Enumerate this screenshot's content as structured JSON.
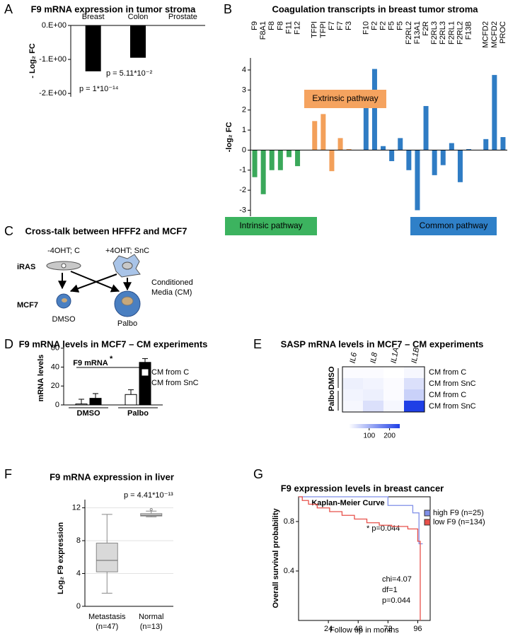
{
  "chart_data": [
    {
      "panel": "A",
      "type": "bar",
      "title": "F9 mRNA expression in tumor stroma",
      "y_label": "- Log₂ FC",
      "categories": [
        "Breast",
        "Colon",
        "Prostate"
      ],
      "values": [
        -1.35,
        -0.95,
        0
      ],
      "color": "#000000",
      "ylim": [
        -2.1,
        0
      ],
      "yticks": [
        {
          "value": 0,
          "label": "0.E+00"
        },
        {
          "value": -1,
          "label": "-1.E+00"
        },
        {
          "value": -2,
          "label": "-2.E+00"
        }
      ],
      "annotations": [
        "p = 1*10⁻¹⁴",
        "p = 5.11*10⁻²"
      ]
    },
    {
      "panel": "B",
      "type": "bar",
      "title": "Coagulation transcripts in breast tumor stroma",
      "y_label": "-log₂ FC",
      "categories": [
        "F9",
        "F8A1",
        "F8",
        "F8",
        "F11",
        "F12",
        null,
        "TFPI",
        "TFPI",
        "F7",
        "F7",
        "F3",
        null,
        "F10",
        "F2",
        "F2",
        "F5",
        "F5",
        "F2RL2",
        "F13A1",
        "F2R",
        "F2RL3",
        "F2RL3",
        "F2RL1",
        "F2RL2",
        "F13B",
        null,
        "MCFD2",
        "MCFD2",
        "PROC"
      ],
      "values": [
        -1.35,
        -2.2,
        -1.0,
        -1.0,
        -0.35,
        -0.8,
        null,
        1.45,
        1.8,
        -1.05,
        0.6,
        0.05,
        null,
        2.1,
        4.05,
        0.2,
        -0.55,
        0.6,
        -1.0,
        -3.0,
        2.2,
        -1.25,
        -0.75,
        0.35,
        -1.6,
        0.05,
        null,
        0.55,
        3.75,
        0.65
      ],
      "colors": [
        "#3aa85a",
        "#3aa85a",
        "#3aa85a",
        "#3aa85a",
        "#3aa85a",
        "#3aa85a",
        null,
        "#f3a05a",
        "#f3a05a",
        "#f3a05a",
        "#f3a05a",
        "#f3a05a",
        null,
        "#2f7cc4",
        "#2f7cc4",
        "#2f7cc4",
        "#2f7cc4",
        "#2f7cc4",
        "#2f7cc4",
        "#2f7cc4",
        "#2f7cc4",
        "#2f7cc4",
        "#2f7cc4",
        "#2f7cc4",
        "#2f7cc4",
        "#2f7cc4",
        null,
        "#2f7cc4",
        "#2f7cc4",
        "#2f7cc4"
      ],
      "ylim": [
        -3.3,
        4.6
      ],
      "yticks": [
        -3,
        -2,
        -1,
        0,
        1,
        2,
        3,
        4
      ],
      "pathways": [
        {
          "label": "Extrinsic pathway",
          "color": "#f5a35f"
        },
        {
          "label": "Intrinsic pathway",
          "color": "#3cb35f"
        },
        {
          "label": "Common pathway",
          "color": "#2f80c8"
        }
      ]
    },
    {
      "panel": "D",
      "type": "bar",
      "title": "F9 mRNA levels in MCF7 – CM experiments",
      "subtitle": "F9 mRNA",
      "y_label": "mRNA levels",
      "categories": [
        "DMSO",
        "Palbo"
      ],
      "series": [
        {
          "name": "CM from C",
          "color": "#ffffff",
          "values": [
            1,
            11
          ],
          "errors": [
            5,
            5
          ]
        },
        {
          "name": "CM from SnC",
          "color": "#000000",
          "values": [
            7,
            45
          ],
          "errors": [
            5,
            4
          ]
        }
      ],
      "ylim": [
        0,
        65
      ],
      "yticks": [
        0,
        20,
        40,
        60
      ],
      "annotations": [
        "*"
      ]
    },
    {
      "panel": "E",
      "type": "heatmap",
      "title": "SASP mRNA levels in MCF7 – CM experiments",
      "columns": [
        "IL6",
        "IL8",
        "IL1A",
        "IL1B"
      ],
      "rows": [
        "CM from C",
        "CM from SnC",
        "CM from C",
        "CM from SnC"
      ],
      "row_groups": [
        "DMSO",
        "Palbo"
      ],
      "values": [
        [
          5,
          5,
          0,
          10
        ],
        [
          20,
          15,
          5,
          40
        ],
        [
          15,
          20,
          5,
          60
        ],
        [
          10,
          40,
          10,
          250
        ]
      ],
      "color": "#1f3fe6",
      "color_range": [
        0,
        250
      ],
      "colorbar_ticks": [
        100,
        200
      ]
    },
    {
      "panel": "F",
      "type": "box",
      "title": "F9 mRNA expression in liver",
      "y_label": "Log₂ F9 expression",
      "categories": [
        [
          "Metastasis",
          "(n=47)"
        ],
        [
          "Normal",
          "(n=13)"
        ]
      ],
      "min": [
        1.6,
        10.9
      ],
      "q1": [
        4.2,
        11.0
      ],
      "median": [
        5.6,
        11.1
      ],
      "q3": [
        7.7,
        11.3
      ],
      "max": [
        11.2,
        11.6
      ],
      "outliers": [
        [],
        [
          11.8
        ]
      ],
      "color": "#d9d9d9",
      "ylim": [
        0,
        13
      ],
      "yticks": [
        0,
        4,
        8,
        12
      ],
      "grid": true,
      "annotations": [
        "p = 4.41*10⁻¹³"
      ]
    },
    {
      "panel": "G",
      "type": "line",
      "title": "F9 expression levels in breast cancer",
      "subtitle": "Kaplan-Meier Curve",
      "x_label": "Follow up in months",
      "y_label": "Overall survival probability",
      "xlim": [
        0,
        106
      ],
      "xticks": [
        24,
        48,
        72,
        96
      ],
      "ylim": [
        0,
        1
      ],
      "yticks": [
        0.4,
        0.8
      ],
      "legend": "upper right",
      "series": [
        {
          "name": "high F9 (n=25)",
          "color": "#7f8fe8",
          "x": [
            0,
            72,
            72,
            92,
            92,
            97,
            97,
            100
          ],
          "values": [
            1,
            1,
            0.93,
            0.93,
            0.87,
            0.87,
            0.62,
            0.62
          ]
        },
        {
          "name": "low F9 (n=134)",
          "color": "#e8504a",
          "x": [
            0,
            3,
            3,
            8,
            8,
            15,
            15,
            25,
            25,
            35,
            35,
            45,
            45,
            55,
            55,
            65,
            65,
            75,
            75,
            88,
            88,
            96,
            96,
            98,
            98
          ],
          "values": [
            1,
            1,
            0.97,
            0.97,
            0.94,
            0.94,
            0.91,
            0.91,
            0.88,
            0.88,
            0.85,
            0.85,
            0.82,
            0.82,
            0.79,
            0.79,
            0.77,
            0.77,
            0.76,
            0.76,
            0.74,
            0.74,
            0.64,
            0.64,
            0
          ]
        }
      ],
      "annotations": [
        "* p=0.044",
        "chi=4.07",
        "df=1",
        "p=0.044"
      ]
    }
  ],
  "diagram": {
    "panel": "C",
    "title": "Cross-talk between HFFF2 and MCF7",
    "labels": {
      "c": "-4OHT; C",
      "snc": "+4OHT; SnC",
      "iras": "iRAS",
      "mcf7": "MCF7",
      "cm": [
        "Conditioned",
        "Media (CM)"
      ],
      "dmso": "DMSO",
      "palbo": "Palbo"
    }
  }
}
